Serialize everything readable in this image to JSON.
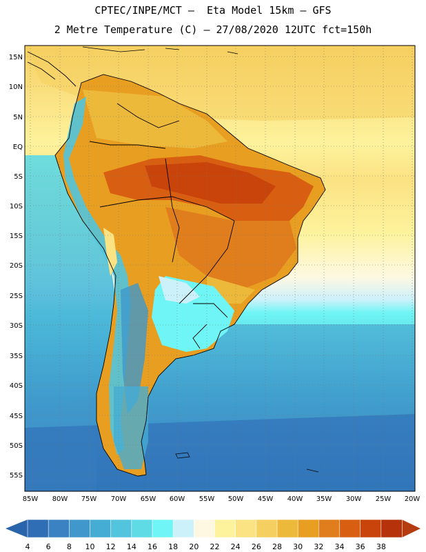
{
  "header": {
    "line1": "CPTEC/INPE/MCT –  Eta Model 15km – GFS",
    "line2": "2 Metre Temperature (C) – 27/08/2020 12UTC fct=150h"
  },
  "map": {
    "lat_labels": [
      "15N",
      "10N",
      "5N",
      "EQ",
      "5S",
      "10S",
      "15S",
      "20S",
      "25S",
      "30S",
      "35S",
      "40S",
      "45S",
      "50S",
      "55S"
    ],
    "lon_labels": [
      "85W",
      "80W",
      "75W",
      "70W",
      "65W",
      "60W",
      "55W",
      "50W",
      "45W",
      "40W",
      "35W",
      "30W",
      "25W",
      "20W"
    ]
  },
  "colorbar": {
    "labels": [
      "4",
      "6",
      "8",
      "10",
      "12",
      "14",
      "16",
      "18",
      "20",
      "22",
      "24",
      "26",
      "28",
      "30",
      "32",
      "34",
      "36",
      "38"
    ],
    "colors": [
      "#2f6db5",
      "#3a82c2",
      "#3f97cb",
      "#45acd4",
      "#52c4dd",
      "#5fdbe6",
      "#6ff5f5",
      "#cdf1fa",
      "#fef8e3",
      "#fdf39c",
      "#fbe283",
      "#f5cf60",
      "#ecb93a",
      "#e89e20",
      "#e07e1d",
      "#d85e12",
      "#c9440a",
      "#b5320a"
    ],
    "low_end_color": "#2a64aa",
    "high_end_color": "#b53b10"
  }
}
